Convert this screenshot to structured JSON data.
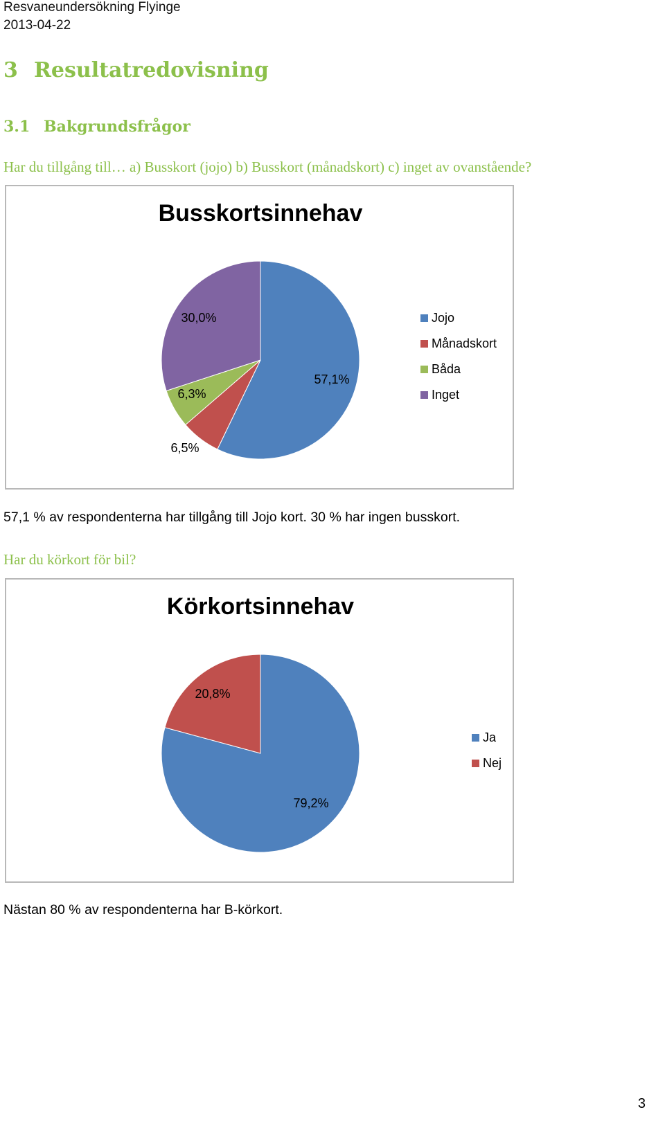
{
  "header": {
    "title": "Resvaneundersökning Flyinge",
    "date": "2013-04-22"
  },
  "section": {
    "number": "3",
    "title": "Resultatredovisning"
  },
  "subsection": {
    "number": "3.1",
    "title": "Bakgrundsfrågor"
  },
  "question1": "Har du tillgång till… a) Busskort (jojo) b) Busskort (månadskort) c) inget av ovanstående?",
  "summary1": "57,1 % av respondenterna har tillgång till Jojo kort. 30 % har ingen busskort.",
  "question2": "Har du körkort för bil?",
  "summary2": "Nästan 80 % av respondenterna har B-körkort.",
  "page_number": "3",
  "chart_data": [
    {
      "type": "pie",
      "title": "Busskortsinnehav",
      "categories": [
        "Jojo",
        "Månadskort",
        "Båda",
        "Inget"
      ],
      "values": [
        57.1,
        6.5,
        6.3,
        30.0
      ],
      "labels": [
        "57,1%",
        "6,5%",
        "6,3%",
        "30,0%"
      ],
      "colors": [
        "#4f81bd",
        "#c0504d",
        "#9bbb59",
        "#8064a2"
      ],
      "legend": "right"
    },
    {
      "type": "pie",
      "title": "Körkortsinnehav",
      "categories": [
        "Ja",
        "Nej"
      ],
      "values": [
        79.2,
        20.8
      ],
      "labels": [
        "79,2%",
        "20,8%"
      ],
      "colors": [
        "#4f81bd",
        "#c0504d"
      ],
      "legend": "right"
    }
  ]
}
